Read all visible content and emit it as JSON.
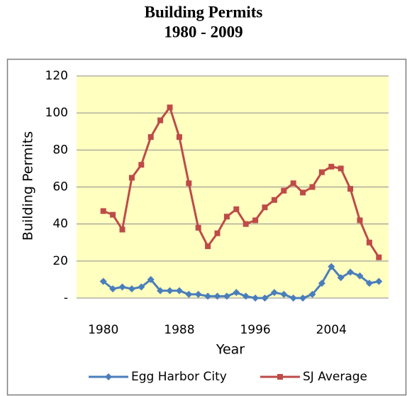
{
  "chart_data": {
    "type": "line",
    "title": "Building Permits",
    "subtitle": "1980 - 2009",
    "x_label": "Year",
    "y_label": "Building Permits",
    "categories": [
      "1980",
      null,
      null,
      null,
      null,
      null,
      null,
      null,
      "1988",
      null,
      null,
      null,
      null,
      null,
      null,
      null,
      "1996",
      null,
      null,
      null,
      null,
      null,
      null,
      null,
      "2004",
      null,
      null,
      null,
      null,
      null
    ],
    "series": [
      {
        "name": "Egg Harbor City",
        "color": "#4a7ebb",
        "marker": "diamond",
        "values": [
          9,
          5,
          6,
          5,
          6,
          10,
          4,
          4,
          4,
          2,
          2,
          1,
          1,
          1,
          3,
          1,
          0,
          0,
          3,
          2,
          0,
          0,
          2,
          8,
          17,
          11,
          14,
          12,
          8,
          9
        ]
      },
      {
        "name": "SJ Average",
        "color": "#be4b48",
        "marker": "square",
        "values": [
          47,
          45,
          37,
          65,
          72,
          87,
          96,
          103,
          87,
          62,
          38,
          28,
          35,
          44,
          48,
          40,
          42,
          49,
          53,
          58,
          62,
          57,
          60,
          68,
          71,
          70,
          59,
          42,
          30,
          22
        ]
      }
    ],
    "ylim": [
      0,
      120
    ],
    "yticks": [
      {
        "value": 0,
        "label": "-"
      },
      20,
      40,
      60,
      80,
      100,
      120
    ],
    "grid": true,
    "legend": "bottom",
    "plot_background": "#ffffc0"
  }
}
